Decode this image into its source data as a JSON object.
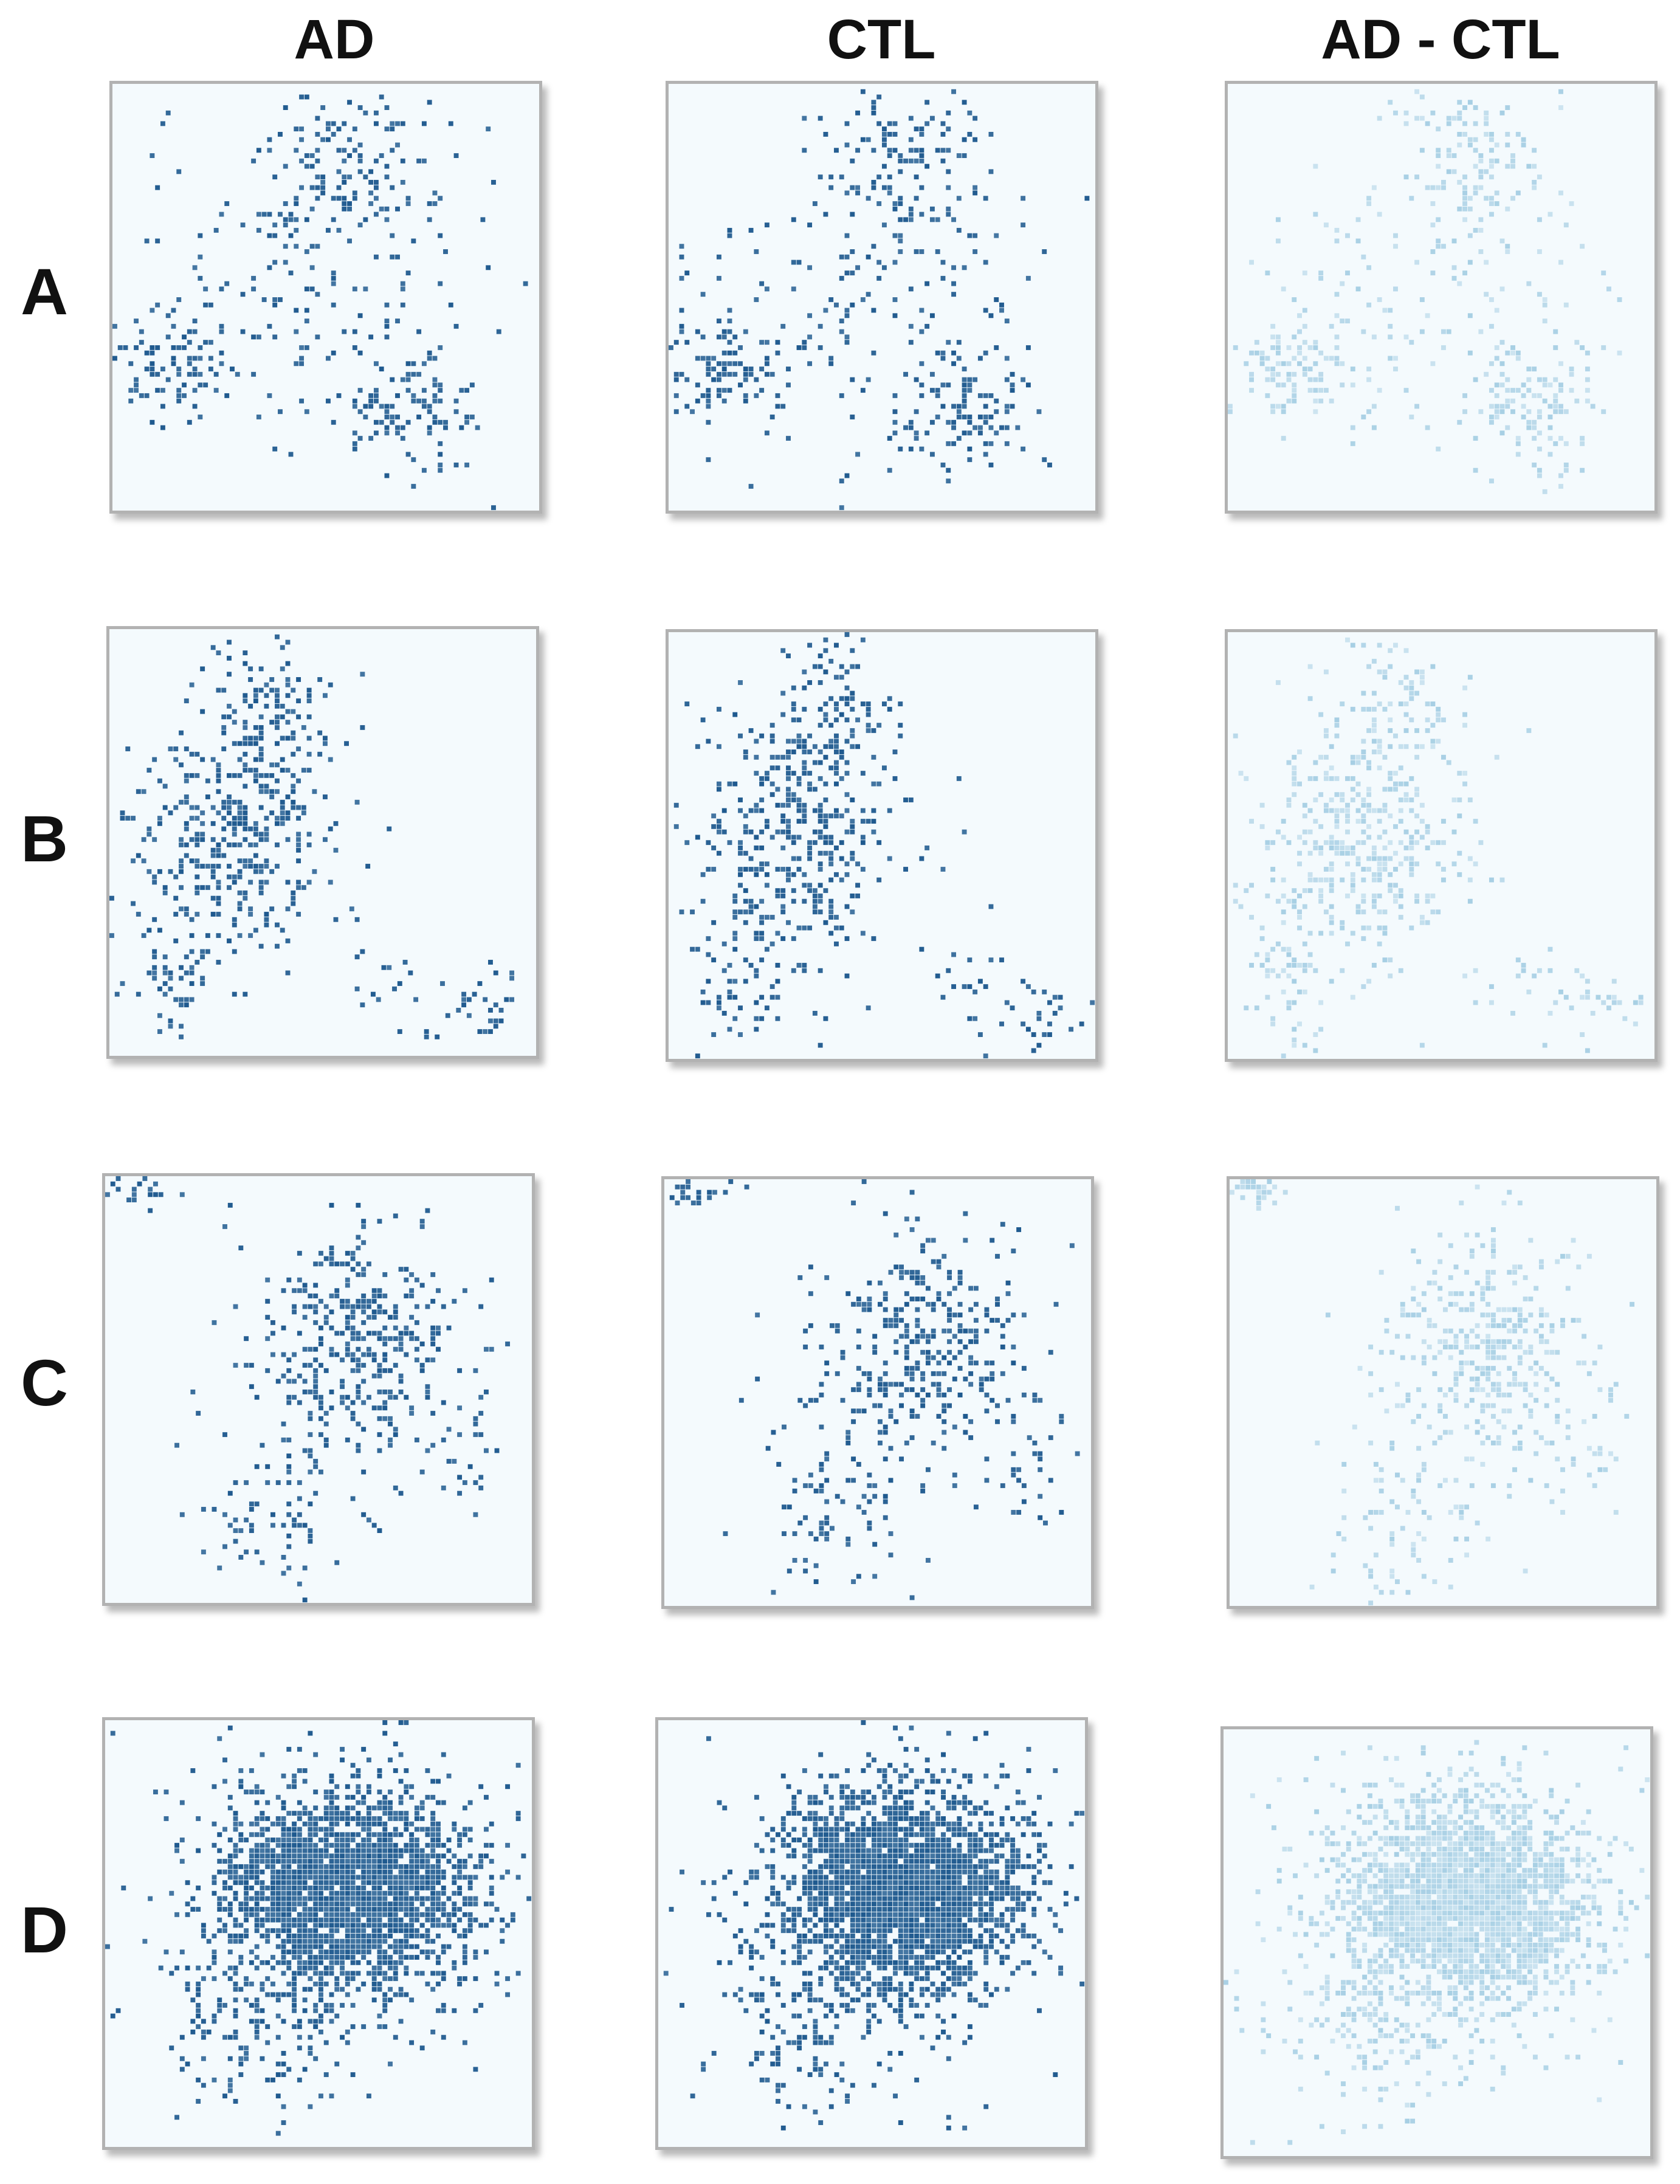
{
  "column_headers": [
    "AD",
    "CTL",
    "AD - CTL"
  ],
  "row_labels": [
    "A",
    "B",
    "C",
    "D"
  ],
  "colors": {
    "background": "#f4fafd",
    "point_group": "#1f5a8f",
    "point_difference": "#9ecae1",
    "panel_border": "#b2b2b2"
  },
  "chart_data": {
    "type": "heatmap",
    "grid": false,
    "xlim": [
      0,
      1
    ],
    "ylim": [
      0,
      1
    ],
    "columns": [
      "AD",
      "CTL",
      "AD - CTL"
    ],
    "rows": [
      {
        "label": "A",
        "clusters": [
          {
            "cx": 0.55,
            "cy": 0.18,
            "sx": 0.09,
            "sy": 0.09,
            "n": 120
          },
          {
            "cx": 0.14,
            "cy": 0.67,
            "sx": 0.07,
            "sy": 0.06,
            "n": 90
          },
          {
            "cx": 0.7,
            "cy": 0.76,
            "sx": 0.08,
            "sy": 0.08,
            "n": 110
          },
          {
            "cx": 0.45,
            "cy": 0.5,
            "sx": 0.22,
            "sy": 0.18,
            "n": 160
          }
        ]
      },
      {
        "label": "B",
        "clusters": [
          {
            "cx": 0.3,
            "cy": 0.48,
            "sx": 0.12,
            "sy": 0.15,
            "n": 380
          },
          {
            "cx": 0.38,
            "cy": 0.18,
            "sx": 0.07,
            "sy": 0.09,
            "n": 90
          },
          {
            "cx": 0.15,
            "cy": 0.82,
            "sx": 0.06,
            "sy": 0.08,
            "n": 55
          },
          {
            "cx": 0.88,
            "cy": 0.88,
            "sx": 0.06,
            "sy": 0.05,
            "n": 30
          },
          {
            "cx": 0.68,
            "cy": 0.82,
            "sx": 0.07,
            "sy": 0.05,
            "n": 18
          }
        ]
      },
      {
        "label": "C",
        "clusters": [
          {
            "cx": 0.6,
            "cy": 0.4,
            "sx": 0.12,
            "sy": 0.14,
            "n": 380
          },
          {
            "cx": 0.4,
            "cy": 0.78,
            "sx": 0.09,
            "sy": 0.11,
            "n": 80
          },
          {
            "cx": 0.06,
            "cy": 0.03,
            "sx": 0.05,
            "sy": 0.02,
            "n": 25
          },
          {
            "cx": 0.85,
            "cy": 0.62,
            "sx": 0.06,
            "sy": 0.08,
            "n": 25
          }
        ]
      },
      {
        "label": "D",
        "clusters": [
          {
            "cx": 0.57,
            "cy": 0.4,
            "sx": 0.14,
            "sy": 0.12,
            "n": 2400
          },
          {
            "cx": 0.33,
            "cy": 0.72,
            "sx": 0.11,
            "sy": 0.1,
            "n": 110
          },
          {
            "cx": 0.5,
            "cy": 0.45,
            "sx": 0.26,
            "sy": 0.24,
            "n": 200
          }
        ]
      }
    ],
    "panels": [
      {
        "row": "A",
        "column": "AD",
        "seed": 11
      },
      {
        "row": "A",
        "column": "CTL",
        "seed": 12
      },
      {
        "row": "A",
        "column": "AD - CTL",
        "seed": 13
      },
      {
        "row": "B",
        "column": "AD",
        "seed": 21
      },
      {
        "row": "B",
        "column": "CTL",
        "seed": 22
      },
      {
        "row": "B",
        "column": "AD - CTL",
        "seed": 23
      },
      {
        "row": "C",
        "column": "AD",
        "seed": 31
      },
      {
        "row": "C",
        "column": "CTL",
        "seed": 32
      },
      {
        "row": "C",
        "column": "AD - CTL",
        "seed": 33
      },
      {
        "row": "D",
        "column": "AD",
        "seed": 41
      },
      {
        "row": "D",
        "column": "CTL",
        "seed": 42
      },
      {
        "row": "D",
        "column": "AD - CTL",
        "seed": 43
      }
    ]
  }
}
